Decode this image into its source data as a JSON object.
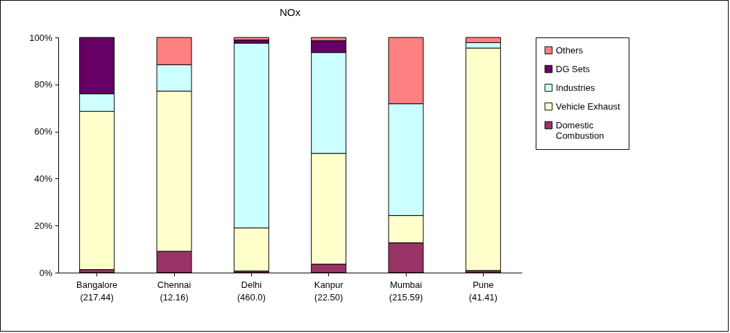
{
  "chart_data": {
    "type": "bar",
    "title": "NOx",
    "stacked": true,
    "categories": [
      "Bangalore\n(217.44)",
      "Chennai\n(12.16)",
      "Delhi\n(460.0)",
      "Kanpur\n(22.50)",
      "Mumbai\n(215.59)",
      "Pune\n(41.41)"
    ],
    "series": [
      {
        "name": "Domestic Combustion",
        "color": "#993366",
        "values": [
          1.3,
          9.1,
          0.7,
          3.6,
          12.7,
          0.9
        ]
      },
      {
        "name": "Vehicle Exhaust",
        "color": "#ffffcc",
        "values": [
          67.3,
          68.1,
          18.3,
          47.1,
          11.6,
          94.6
        ]
      },
      {
        "name": "Industries",
        "color": "#ccffff",
        "values": [
          7.5,
          11.2,
          78.6,
          42.9,
          47.5,
          2.3
        ]
      },
      {
        "name": "DG Sets",
        "color": "#660066",
        "values": [
          23.9,
          0,
          1.3,
          5.0,
          0,
          0
        ]
      },
      {
        "name": "Others",
        "color": "#ff8080",
        "values": [
          0,
          11.6,
          1.1,
          1.4,
          28.2,
          2.2
        ]
      }
    ],
    "ylim": [
      0,
      100
    ],
    "yticks": [
      {
        "value": 0,
        "label": "0%"
      },
      {
        "value": 20,
        "label": "20%"
      },
      {
        "value": 40,
        "label": "40%"
      },
      {
        "value": 60,
        "label": "60%"
      },
      {
        "value": 80,
        "label": "80%"
      },
      {
        "value": 100,
        "label": "100%"
      }
    ],
    "grid": false,
    "legend": "right"
  }
}
